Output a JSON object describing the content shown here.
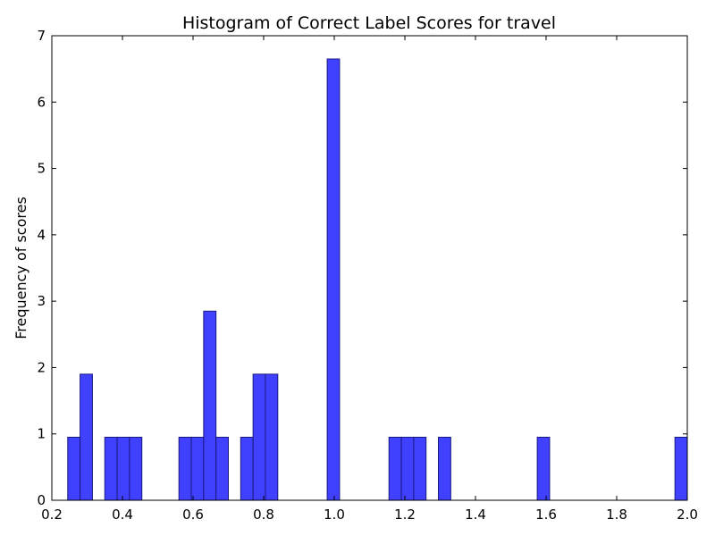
{
  "chart_data": {
    "type": "bar",
    "title": "Histogram of Correct Label Scores for travel",
    "xlabel": "",
    "ylabel": "Frequency of scores",
    "xlim": [
      0.2,
      2.0
    ],
    "ylim": [
      0,
      7
    ],
    "xticks": [
      0.2,
      0.4,
      0.6,
      0.8,
      1.0,
      1.2,
      1.4,
      1.6,
      1.8,
      2.0
    ],
    "xtick_labels": [
      "0.2",
      "0.4",
      "0.6",
      "0.8",
      "1.0",
      "1.2",
      "1.4",
      "1.6",
      "1.8",
      "2.0"
    ],
    "yticks": [
      0,
      1,
      2,
      3,
      4,
      5,
      6,
      7
    ],
    "ytick_labels": [
      "0",
      "1",
      "2",
      "3",
      "4",
      "5",
      "6",
      "7"
    ],
    "grid": false,
    "bar_color": "#4040ff",
    "edge_color": "#1a1a80",
    "bin_width": 0.035,
    "bins": [
      {
        "x0": 0.245,
        "value": 0.95
      },
      {
        "x0": 0.28,
        "value": 1.9
      },
      {
        "x0": 0.35,
        "value": 0.95
      },
      {
        "x0": 0.385,
        "value": 0.95
      },
      {
        "x0": 0.42,
        "value": 0.95
      },
      {
        "x0": 0.56,
        "value": 0.95
      },
      {
        "x0": 0.595,
        "value": 0.95
      },
      {
        "x0": 0.63,
        "value": 2.85
      },
      {
        "x0": 0.665,
        "value": 0.95
      },
      {
        "x0": 0.735,
        "value": 0.95
      },
      {
        "x0": 0.77,
        "value": 1.9
      },
      {
        "x0": 0.805,
        "value": 1.9
      },
      {
        "x0": 0.98,
        "value": 6.65
      },
      {
        "x0": 1.155,
        "value": 0.95
      },
      {
        "x0": 1.19,
        "value": 0.95
      },
      {
        "x0": 1.225,
        "value": 0.95
      },
      {
        "x0": 1.295,
        "value": 0.95
      },
      {
        "x0": 1.575,
        "value": 0.95
      },
      {
        "x0": 1.965,
        "value": 0.95
      }
    ]
  }
}
